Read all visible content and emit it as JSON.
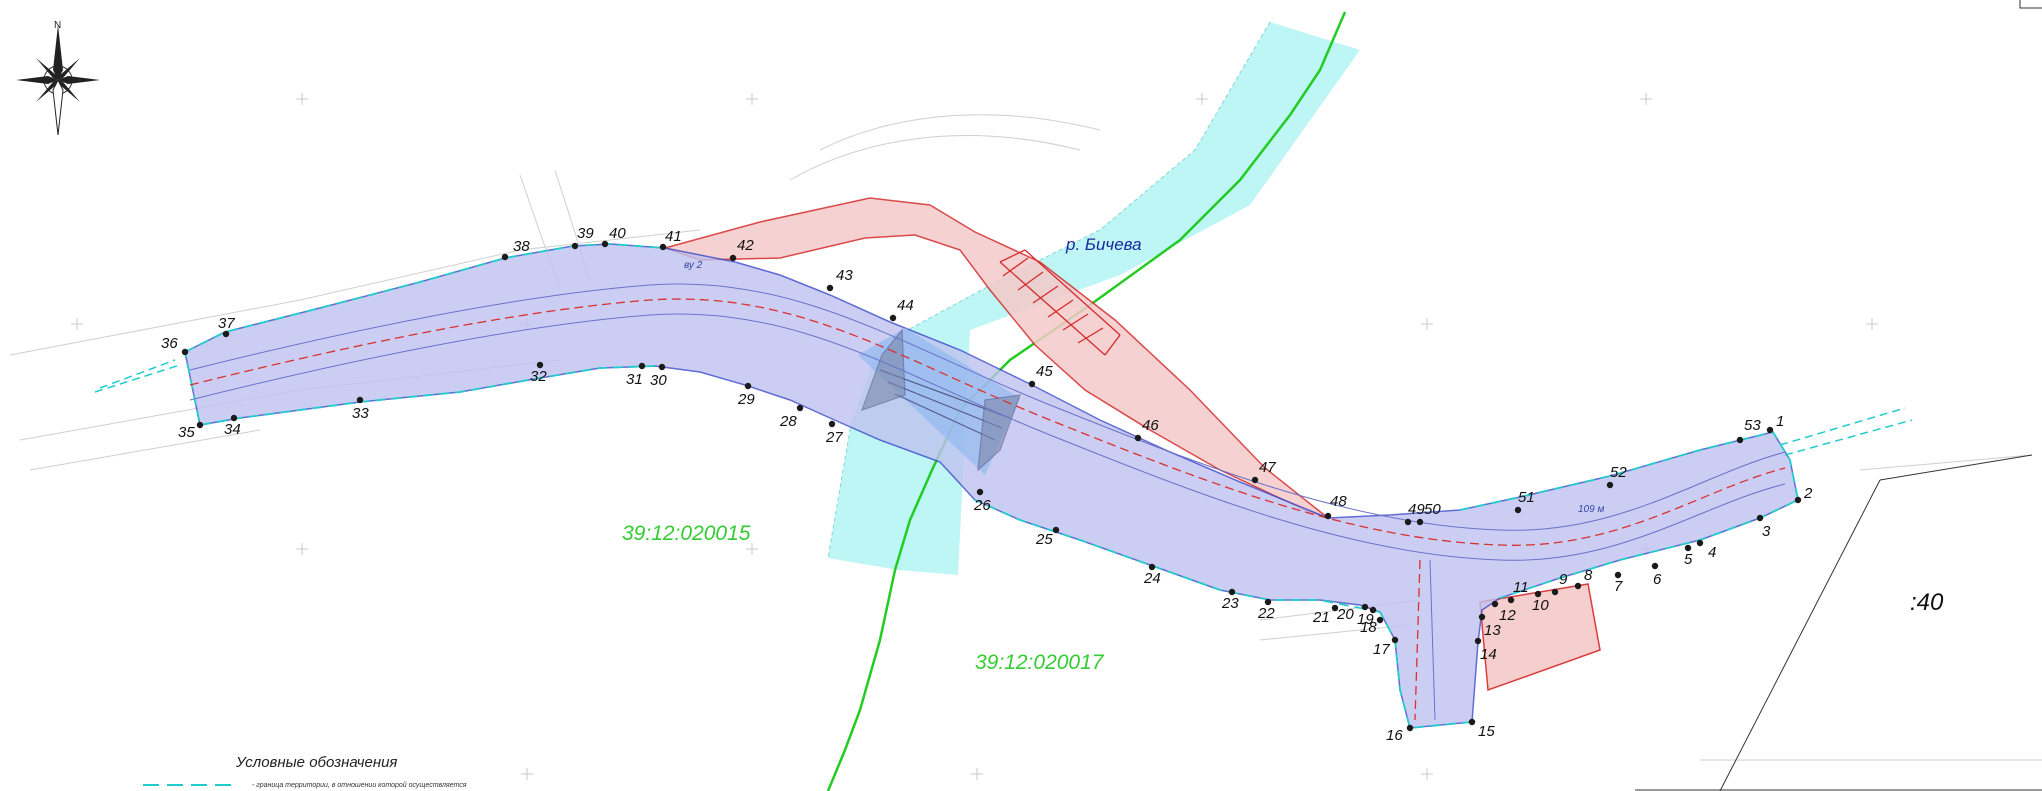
{
  "map": {
    "river_label": "р. Бичева",
    "cadastral_labels": [
      "39:12:020015",
      "39:12:020017"
    ],
    "scale_fragment": ":40",
    "compass": {
      "north_letter": "N"
    },
    "legend": {
      "title": "Условные обозначения",
      "item_text": "- граница территории, в отношении которой осуществляется"
    },
    "annotations": {
      "length_note": "109 м",
      "side_note_1": "ву 2"
    },
    "boundary_points": [
      "1",
      "2",
      "3",
      "4",
      "5",
      "6",
      "7",
      "8",
      "9",
      "10",
      "11",
      "12",
      "13",
      "14",
      "15",
      "16",
      "17",
      "18",
      "19",
      "20",
      "21",
      "22",
      "23",
      "24",
      "25",
      "26",
      "27",
      "28",
      "29",
      "30",
      "31",
      "32",
      "33",
      "34",
      "35",
      "36",
      "37",
      "38",
      "39",
      "40",
      "41",
      "42",
      "43",
      "44",
      "45",
      "46",
      "47",
      "48",
      "49",
      "50",
      "51",
      "52",
      "53"
    ],
    "colors": {
      "road_zone_fill": "#bfc3f0",
      "road_zone_border": "#3a48c9",
      "red_zone_fill": "#f5c9c9",
      "red_zone_border": "#d42a2a",
      "river_fill": "#aef2f2",
      "bridge_zone_fill": "#8fb8f0",
      "green_line": "#22cc22",
      "boundary_dash": "#22cccc",
      "axis_red": "#d93030"
    }
  }
}
